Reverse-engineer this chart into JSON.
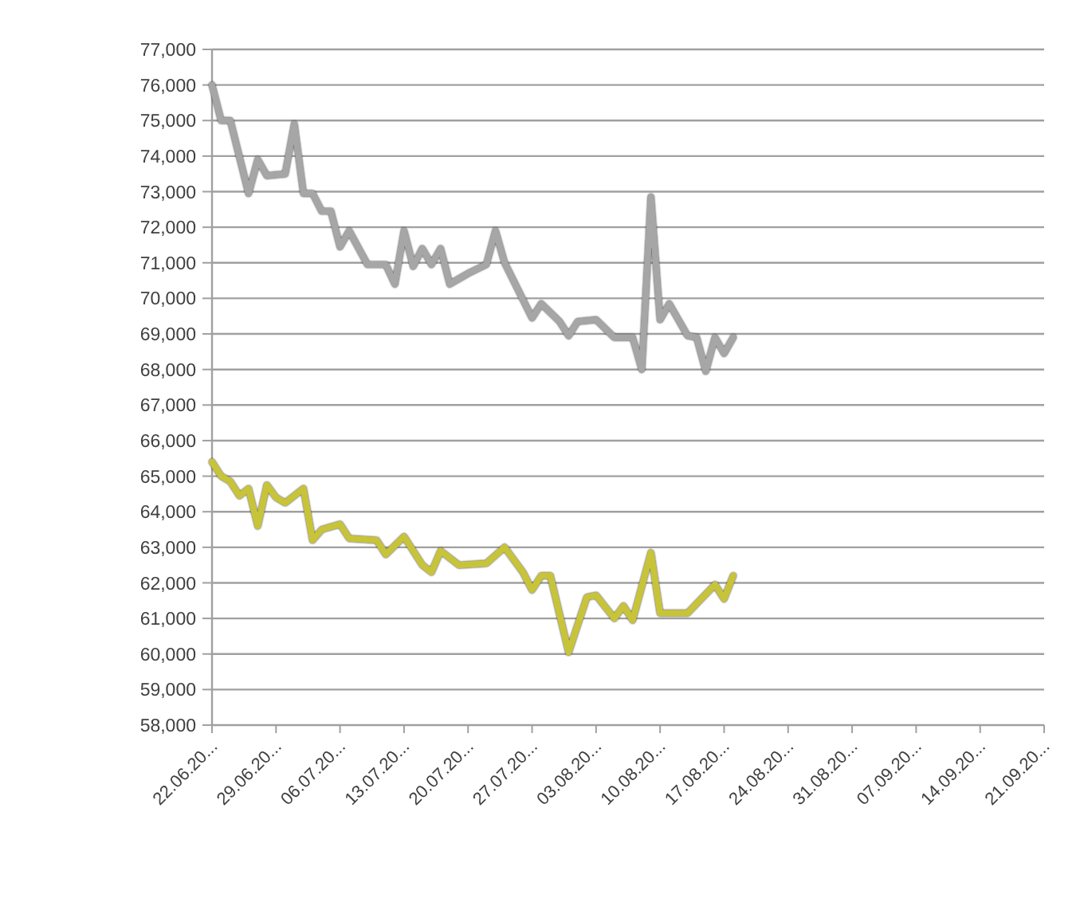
{
  "chart_data": {
    "type": "line",
    "xlim": [
      "--06-22",
      "--09-21"
    ],
    "xticks": [
      {
        "value": "--06-22",
        "label": "22.06.20..."
      },
      {
        "value": "--06-29",
        "label": "29.06.20..."
      },
      {
        "value": "--07-06",
        "label": "06.07.20..."
      },
      {
        "value": "--07-13",
        "label": "13.07.20..."
      },
      {
        "value": "--07-20",
        "label": "20.07.20..."
      },
      {
        "value": "--07-27",
        "label": "27.07.20..."
      },
      {
        "value": "--08-03",
        "label": "03.08.20..."
      },
      {
        "value": "--08-10",
        "label": "10.08.20..."
      },
      {
        "value": "--08-17",
        "label": "17.08.20..."
      },
      {
        "value": "--08-24",
        "label": "24.08.20..."
      },
      {
        "value": "--08-31",
        "label": "31.08.20..."
      },
      {
        "value": "--09-07",
        "label": "07.09.20..."
      },
      {
        "value": "--09-14",
        "label": "14.09.20..."
      },
      {
        "value": "--09-21",
        "label": "21.09.20..."
      }
    ],
    "ylim": [
      58000,
      77000
    ],
    "yticks": [
      {
        "value": 58000,
        "label": "58,000"
      },
      {
        "value": 59000,
        "label": "59,000"
      },
      {
        "value": 60000,
        "label": "60,000"
      },
      {
        "value": 61000,
        "label": "61,000"
      },
      {
        "value": 62000,
        "label": "62,000"
      },
      {
        "value": 63000,
        "label": "63,000"
      },
      {
        "value": 64000,
        "label": "64,000"
      },
      {
        "value": 65000,
        "label": "65,000"
      },
      {
        "value": 66000,
        "label": "66,000"
      },
      {
        "value": 67000,
        "label": "67,000"
      },
      {
        "value": 68000,
        "label": "68,000"
      },
      {
        "value": 69000,
        "label": "69,000"
      },
      {
        "value": 70000,
        "label": "70,000"
      },
      {
        "value": 71000,
        "label": "71,000"
      },
      {
        "value": 72000,
        "label": "72,000"
      },
      {
        "value": 73000,
        "label": "73,000"
      },
      {
        "value": 74000,
        "label": "74,000"
      },
      {
        "value": 75000,
        "label": "75,000"
      },
      {
        "value": 76000,
        "label": "76,000"
      },
      {
        "value": 77000,
        "label": "77,000"
      }
    ],
    "grid": "y",
    "series": [
      {
        "color": "#a6a6a6",
        "x": [
          "--06-22",
          "--06-23",
          "--06-24",
          "--06-26",
          "--06-27",
          "--06-28",
          "--06-30",
          "--07-01",
          "--07-02",
          "--07-03",
          "--07-04",
          "--07-05",
          "--07-06",
          "--07-07",
          "--07-09",
          "--07-11",
          "--07-12",
          "--07-13",
          "--07-14",
          "--07-15",
          "--07-16",
          "--07-17",
          "--07-18",
          "--07-20",
          "--07-22",
          "--07-23",
          "--07-24",
          "--07-27",
          "--07-28",
          "--07-30",
          "--07-31",
          "--08-01",
          "--08-03",
          "--08-05",
          "--08-07",
          "--08-08",
          "--08-09",
          "--08-10",
          "--08-11",
          "--08-13",
          "--08-14",
          "--08-15",
          "--08-16",
          "--08-17",
          "--08-18"
        ],
        "values": [
          76000,
          75000,
          75000,
          72950,
          73900,
          73450,
          73500,
          74900,
          72950,
          72950,
          72450,
          72450,
          71450,
          71900,
          70950,
          70950,
          70400,
          71900,
          70900,
          71400,
          70950,
          71400,
          70400,
          70700,
          70950,
          71900,
          71000,
          69450,
          69850,
          69350,
          68950,
          69350,
          69400,
          68900,
          68900,
          68000,
          72850,
          69400,
          69850,
          68950,
          68900,
          67950,
          68900,
          68450,
          68900
        ]
      },
      {
        "color": "#c8c43a",
        "x": [
          "--06-22",
          "--06-23",
          "--06-24",
          "--06-25",
          "--06-26",
          "--06-27",
          "--06-28",
          "--06-29",
          "--06-30",
          "--07-02",
          "--07-03",
          "--07-04",
          "--07-06",
          "--07-07",
          "--07-10",
          "--07-11",
          "--07-13",
          "--07-15",
          "--07-16",
          "--07-17",
          "--07-19",
          "--07-22",
          "--07-24",
          "--07-26",
          "--07-27",
          "--07-28",
          "--07-29",
          "--07-31",
          "--08-02",
          "--08-03",
          "--08-05",
          "--08-06",
          "--08-07",
          "--08-09",
          "--08-10",
          "--08-13",
          "--08-16",
          "--08-17",
          "--08-18"
        ],
        "values": [
          65400,
          65000,
          64850,
          64450,
          64650,
          63600,
          64750,
          64400,
          64250,
          64650,
          63200,
          63500,
          63650,
          63250,
          63200,
          62800,
          63300,
          62500,
          62300,
          62900,
          62500,
          62550,
          63000,
          62300,
          61800,
          62200,
          62200,
          60050,
          61600,
          61650,
          61000,
          61350,
          60950,
          62850,
          61150,
          61150,
          61950,
          61550,
          62200
        ]
      }
    ]
  }
}
